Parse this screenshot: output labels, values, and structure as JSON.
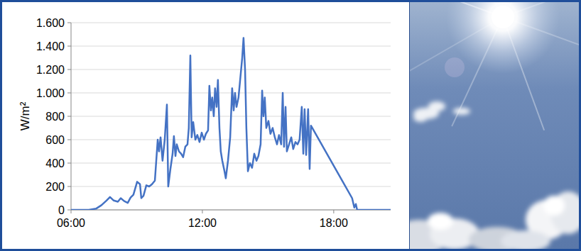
{
  "chart_data": {
    "type": "line",
    "y_label": "W/m²",
    "color": "#4472c4",
    "grid": true,
    "xlim": [
      6,
      20.6
    ],
    "xticks": [
      {
        "value": 6,
        "label": "06:00"
      },
      {
        "value": 12,
        "label": "12:00"
      },
      {
        "value": 18,
        "label": "18:00"
      }
    ],
    "ylim": [
      0,
      1600
    ],
    "yticks": [
      0,
      200,
      400,
      600,
      800,
      {
        "value": 1000,
        "label": "1.000"
      },
      {
        "value": 1200,
        "label": "1.200"
      },
      {
        "value": 1400,
        "label": "1.400"
      },
      {
        "value": 1600,
        "label": "1.600"
      }
    ],
    "x": [
      6.0,
      6.81,
      7.14,
      7.39,
      7.62,
      7.78,
      7.95,
      8.14,
      8.27,
      8.43,
      8.59,
      8.72,
      8.85,
      9.02,
      9.15,
      9.21,
      9.31,
      9.44,
      9.57,
      9.7,
      9.83,
      9.96,
      10.02,
      10.09,
      10.18,
      10.28,
      10.38,
      10.44,
      10.54,
      10.64,
      10.7,
      10.77,
      10.83,
      10.93,
      11.03,
      11.12,
      11.22,
      11.32,
      11.38,
      11.45,
      11.51,
      11.58,
      11.68,
      11.77,
      11.87,
      11.97,
      12.07,
      12.16,
      12.26,
      12.32,
      12.39,
      12.45,
      12.52,
      12.58,
      12.65,
      12.71,
      12.78,
      12.84,
      12.91,
      13.01,
      13.07,
      13.17,
      13.27,
      13.36,
      13.43,
      13.49,
      13.56,
      13.65,
      13.72,
      13.82,
      13.88,
      13.95,
      14.01,
      14.08,
      14.17,
      14.27,
      14.37,
      14.47,
      14.56,
      14.66,
      14.73,
      14.79,
      14.85,
      14.92,
      15.02,
      15.11,
      15.21,
      15.31,
      15.41,
      15.5,
      15.6,
      15.67,
      15.73,
      15.8,
      15.86,
      15.96,
      16.06,
      16.15,
      16.25,
      16.35,
      16.44,
      16.54,
      16.61,
      16.67,
      16.74,
      16.83,
      16.9,
      16.96,
      18.84,
      18.94,
      19.01,
      19.07,
      19.3,
      20.6
    ],
    "values": [
      0,
      0,
      10,
      40,
      80,
      110,
      80,
      70,
      100,
      75,
      60,
      105,
      130,
      240,
      220,
      100,
      120,
      210,
      200,
      220,
      250,
      600,
      500,
      620,
      420,
      600,
      900,
      200,
      350,
      480,
      630,
      460,
      560,
      500,
      480,
      450,
      540,
      560,
      700,
      1320,
      620,
      750,
      600,
      640,
      580,
      660,
      600,
      650,
      680,
      1060,
      850,
      960,
      800,
      1040,
      880,
      1110,
      700,
      500,
      420,
      330,
      270,
      420,
      620,
      1040,
      850,
      1000,
      880,
      960,
      1100,
      1300,
      1470,
      1200,
      700,
      330,
      400,
      360,
      480,
      420,
      460,
      560,
      1020,
      800,
      960,
      700,
      760,
      650,
      700,
      620,
      560,
      640,
      560,
      1000,
      540,
      880,
      500,
      560,
      620,
      520,
      580,
      560,
      600,
      880,
      480,
      860,
      470,
      860,
      350,
      720,
      100,
      20,
      50,
      0,
      0,
      0
    ]
  }
}
